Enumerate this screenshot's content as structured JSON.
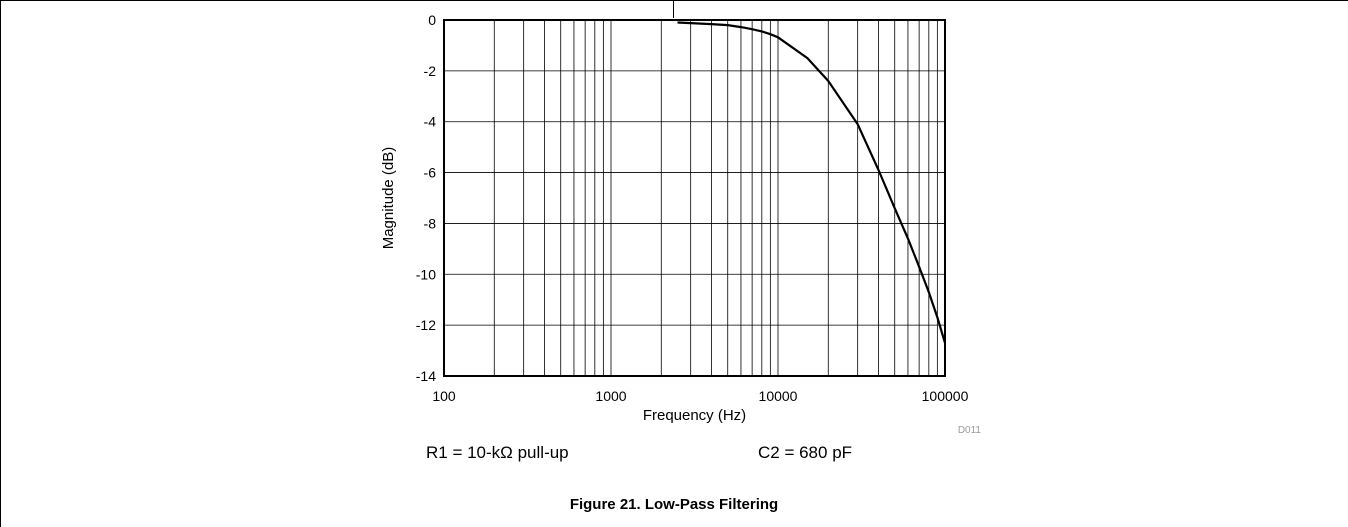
{
  "chart_data": {
    "type": "line",
    "xlabel": "Frequency (Hz)",
    "ylabel": "Magnitude (dB)",
    "x_scale": "log",
    "xlim": [
      100,
      100000
    ],
    "ylim": [
      -14,
      0
    ],
    "x_ticks": [
      "100",
      "1000",
      "10000",
      "100000"
    ],
    "x_tick_values": [
      100,
      1000,
      10000,
      100000
    ],
    "y_ticks": [
      "0",
      "-2",
      "-4",
      "-6",
      "-8",
      "-10",
      "-12",
      "-14"
    ],
    "y_tick_values": [
      0,
      -2,
      -4,
      -6,
      -8,
      -10,
      -12,
      -14
    ],
    "grid": true,
    "line_color": "#000000",
    "series": [
      {
        "x": [
          2500,
          3000,
          4000,
          5000,
          6000,
          7000,
          8000,
          9000,
          10000,
          15000,
          20000,
          30000,
          40000,
          50000,
          60000,
          70000,
          80000,
          90000,
          100000
        ],
        "y": [
          -0.1,
          -0.12,
          -0.16,
          -0.2,
          -0.28,
          -0.36,
          -0.45,
          -0.56,
          -0.68,
          -1.5,
          -2.4,
          -4.1,
          -5.9,
          -7.4,
          -8.6,
          -9.7,
          -10.7,
          -11.7,
          -12.7
        ]
      }
    ],
    "code_label": "D011"
  },
  "captions": {
    "r1": "R1 = 10-kΩ pull-up",
    "c2": "C2 = 680 pF"
  },
  "figure_title": "Figure 21. Low-Pass Filtering"
}
